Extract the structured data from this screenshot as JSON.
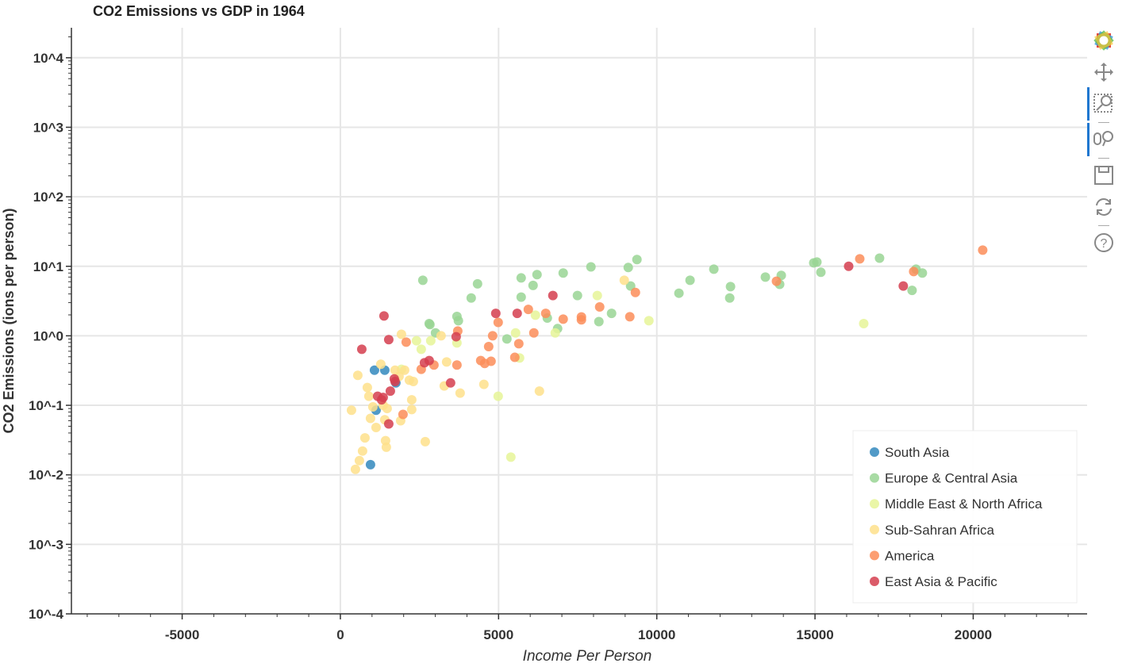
{
  "chart_data": {
    "type": "scatter",
    "title": "CO2 Emissions vs GDP in 1964",
    "xlabel": "Income Per Person",
    "ylabel": "CO2 Emissions (ions per person)",
    "xlim": [
      -8500,
      23600
    ],
    "ylim": [
      0.0001,
      27000
    ],
    "yscale": "log",
    "grid": true,
    "legend_position": "bottom-right",
    "x_ticks": [
      -5000,
      0,
      5000,
      10000,
      15000,
      20000
    ],
    "x_tick_labels": [
      "-5000",
      "0",
      "5000",
      "10000",
      "15000",
      "20000"
    ],
    "y_ticks": [
      10000,
      1000,
      100,
      10,
      1,
      0.1,
      0.01,
      0.001,
      0.0001
    ],
    "y_tick_labels": [
      "10^4",
      "10^3",
      "10^2",
      "10^1",
      "10^0",
      "10^-1",
      "10^-2",
      "10^-3",
      "10^-4"
    ],
    "series": [
      {
        "name": "South Asia",
        "color": "#3288bd",
        "points": [
          [
            1078,
            0.32
          ],
          [
            1403,
            0.32
          ],
          [
            1754,
            0.21
          ],
          [
            952,
            0.014
          ],
          [
            1128,
            0.085
          ]
        ]
      },
      {
        "name": "Europe & Central Asia",
        "color": "#99d594",
        "points": [
          [
            2606,
            6.3
          ],
          [
            2807,
            1.5
          ],
          [
            2830,
            1.45
          ],
          [
            3684,
            1.9
          ],
          [
            3730,
            1.65
          ],
          [
            4135,
            3.5
          ],
          [
            4335,
            5.6
          ],
          [
            3007,
            1.1
          ],
          [
            5263,
            0.9
          ],
          [
            5714,
            3.6
          ],
          [
            6090,
            5.3
          ],
          [
            5714,
            6.8
          ],
          [
            6215,
            7.6
          ],
          [
            6540,
            1.8
          ],
          [
            6866,
            1.27
          ],
          [
            7042,
            8.0
          ],
          [
            7493,
            3.8
          ],
          [
            7919,
            9.8
          ],
          [
            8170,
            1.6
          ],
          [
            8571,
            2.1
          ],
          [
            9098,
            9.6
          ],
          [
            9173,
            5.2
          ],
          [
            9373,
            12.5
          ],
          [
            10700,
            4.1
          ],
          [
            11051,
            6.3
          ],
          [
            11803,
            9.1
          ],
          [
            12330,
            5.1
          ],
          [
            12305,
            3.5
          ],
          [
            13432,
            7.0
          ],
          [
            13934,
            7.4
          ],
          [
            13883,
            5.5
          ],
          [
            14960,
            11.2
          ],
          [
            15060,
            11.5
          ],
          [
            15186,
            8.2
          ],
          [
            17040,
            13.1
          ],
          [
            18068,
            4.5
          ],
          [
            18193,
            9.1
          ],
          [
            18393,
            8.0
          ]
        ]
      },
      {
        "name": "Middle East & North Africa",
        "color": "#e6f598",
        "points": [
          [
            2406,
            0.85
          ],
          [
            2556,
            0.64
          ],
          [
            2857,
            0.85
          ],
          [
            3684,
            0.79
          ],
          [
            5538,
            1.1
          ],
          [
            5664,
            0.48
          ],
          [
            6165,
            1.98
          ],
          [
            6791,
            1.1
          ],
          [
            8120,
            3.8
          ],
          [
            9750,
            1.65
          ],
          [
            16540,
            1.5
          ],
          [
            4987,
            0.135
          ],
          [
            5388,
            0.018
          ],
          [
            1930,
            0.33
          ]
        ]
      },
      {
        "name": "Sub-Sahran Africa",
        "color": "#fee08b",
        "points": [
          [
            351,
            0.085
          ],
          [
            476,
            0.012
          ],
          [
            551,
            0.27
          ],
          [
            601,
            0.016
          ],
          [
            701,
            0.022
          ],
          [
            777,
            0.034
          ],
          [
            852,
            0.18
          ],
          [
            902,
            0.135
          ],
          [
            952,
            0.065
          ],
          [
            1028,
            0.095
          ],
          [
            1128,
            0.048
          ],
          [
            1278,
            0.39
          ],
          [
            1353,
            0.1
          ],
          [
            1403,
            0.062
          ],
          [
            1428,
            0.031
          ],
          [
            1453,
            0.025
          ],
          [
            1478,
            0.09
          ],
          [
            1930,
            1.05
          ],
          [
            1905,
            0.06
          ],
          [
            2030,
            0.32
          ],
          [
            2180,
            0.23
          ],
          [
            2255,
            0.12
          ],
          [
            2255,
            0.087
          ],
          [
            2306,
            0.22
          ],
          [
            2683,
            0.03
          ],
          [
            3183,
            1.0
          ],
          [
            3283,
            0.19
          ],
          [
            3358,
            0.42
          ],
          [
            3785,
            0.15
          ],
          [
            4536,
            0.2
          ],
          [
            6290,
            0.16
          ],
          [
            8972,
            6.3
          ],
          [
            1729,
            0.32
          ],
          [
            1855,
            0.26
          ]
        ]
      },
      {
        "name": "America",
        "color": "#fc8d59",
        "points": [
          [
            2080,
            0.81
          ],
          [
            2556,
            0.33
          ],
          [
            2957,
            0.38
          ],
          [
            3710,
            1.17
          ],
          [
            3684,
            0.38
          ],
          [
            1980,
            0.074
          ],
          [
            4436,
            0.44
          ],
          [
            4561,
            0.4
          ],
          [
            4762,
            0.43
          ],
          [
            4687,
            0.7
          ],
          [
            4812,
            1.0
          ],
          [
            4987,
            1.56
          ],
          [
            5513,
            0.49
          ],
          [
            5639,
            0.77
          ],
          [
            5940,
            2.4
          ],
          [
            6115,
            1.1
          ],
          [
            6490,
            2.1
          ],
          [
            7042,
            1.74
          ],
          [
            7618,
            1.87
          ],
          [
            7618,
            1.7
          ],
          [
            8195,
            2.6
          ],
          [
            9148,
            1.88
          ],
          [
            9324,
            4.2
          ],
          [
            13783,
            6.1
          ],
          [
            16415,
            12.8
          ],
          [
            18118,
            8.4
          ],
          [
            20300,
            17.1
          ]
        ]
      },
      {
        "name": "East Asia & Pacific",
        "color": "#d53e4f",
        "points": [
          [
            677,
            0.64
          ],
          [
            1379,
            1.93
          ],
          [
            1529,
            0.88
          ],
          [
            1178,
            0.135
          ],
          [
            1303,
            0.12
          ],
          [
            1353,
            0.13
          ],
          [
            1579,
            0.16
          ],
          [
            1529,
            0.054
          ],
          [
            1704,
            0.24
          ],
          [
            1729,
            0.22
          ],
          [
            2657,
            0.41
          ],
          [
            2807,
            0.44
          ],
          [
            3483,
            0.21
          ],
          [
            3659,
            0.97
          ],
          [
            4912,
            2.1
          ],
          [
            5588,
            2.1
          ],
          [
            6716,
            3.8
          ],
          [
            16064,
            10.0
          ],
          [
            17791,
            5.2
          ]
        ]
      }
    ]
  },
  "toolbar": {
    "tools": [
      "bokeh-logo-icon",
      "pan-icon",
      "box-zoom-icon",
      "wheel-zoom-icon",
      "save-icon",
      "reset-icon",
      "help-icon"
    ],
    "active": [
      "box-zoom-icon",
      "wheel-zoom-icon"
    ]
  }
}
